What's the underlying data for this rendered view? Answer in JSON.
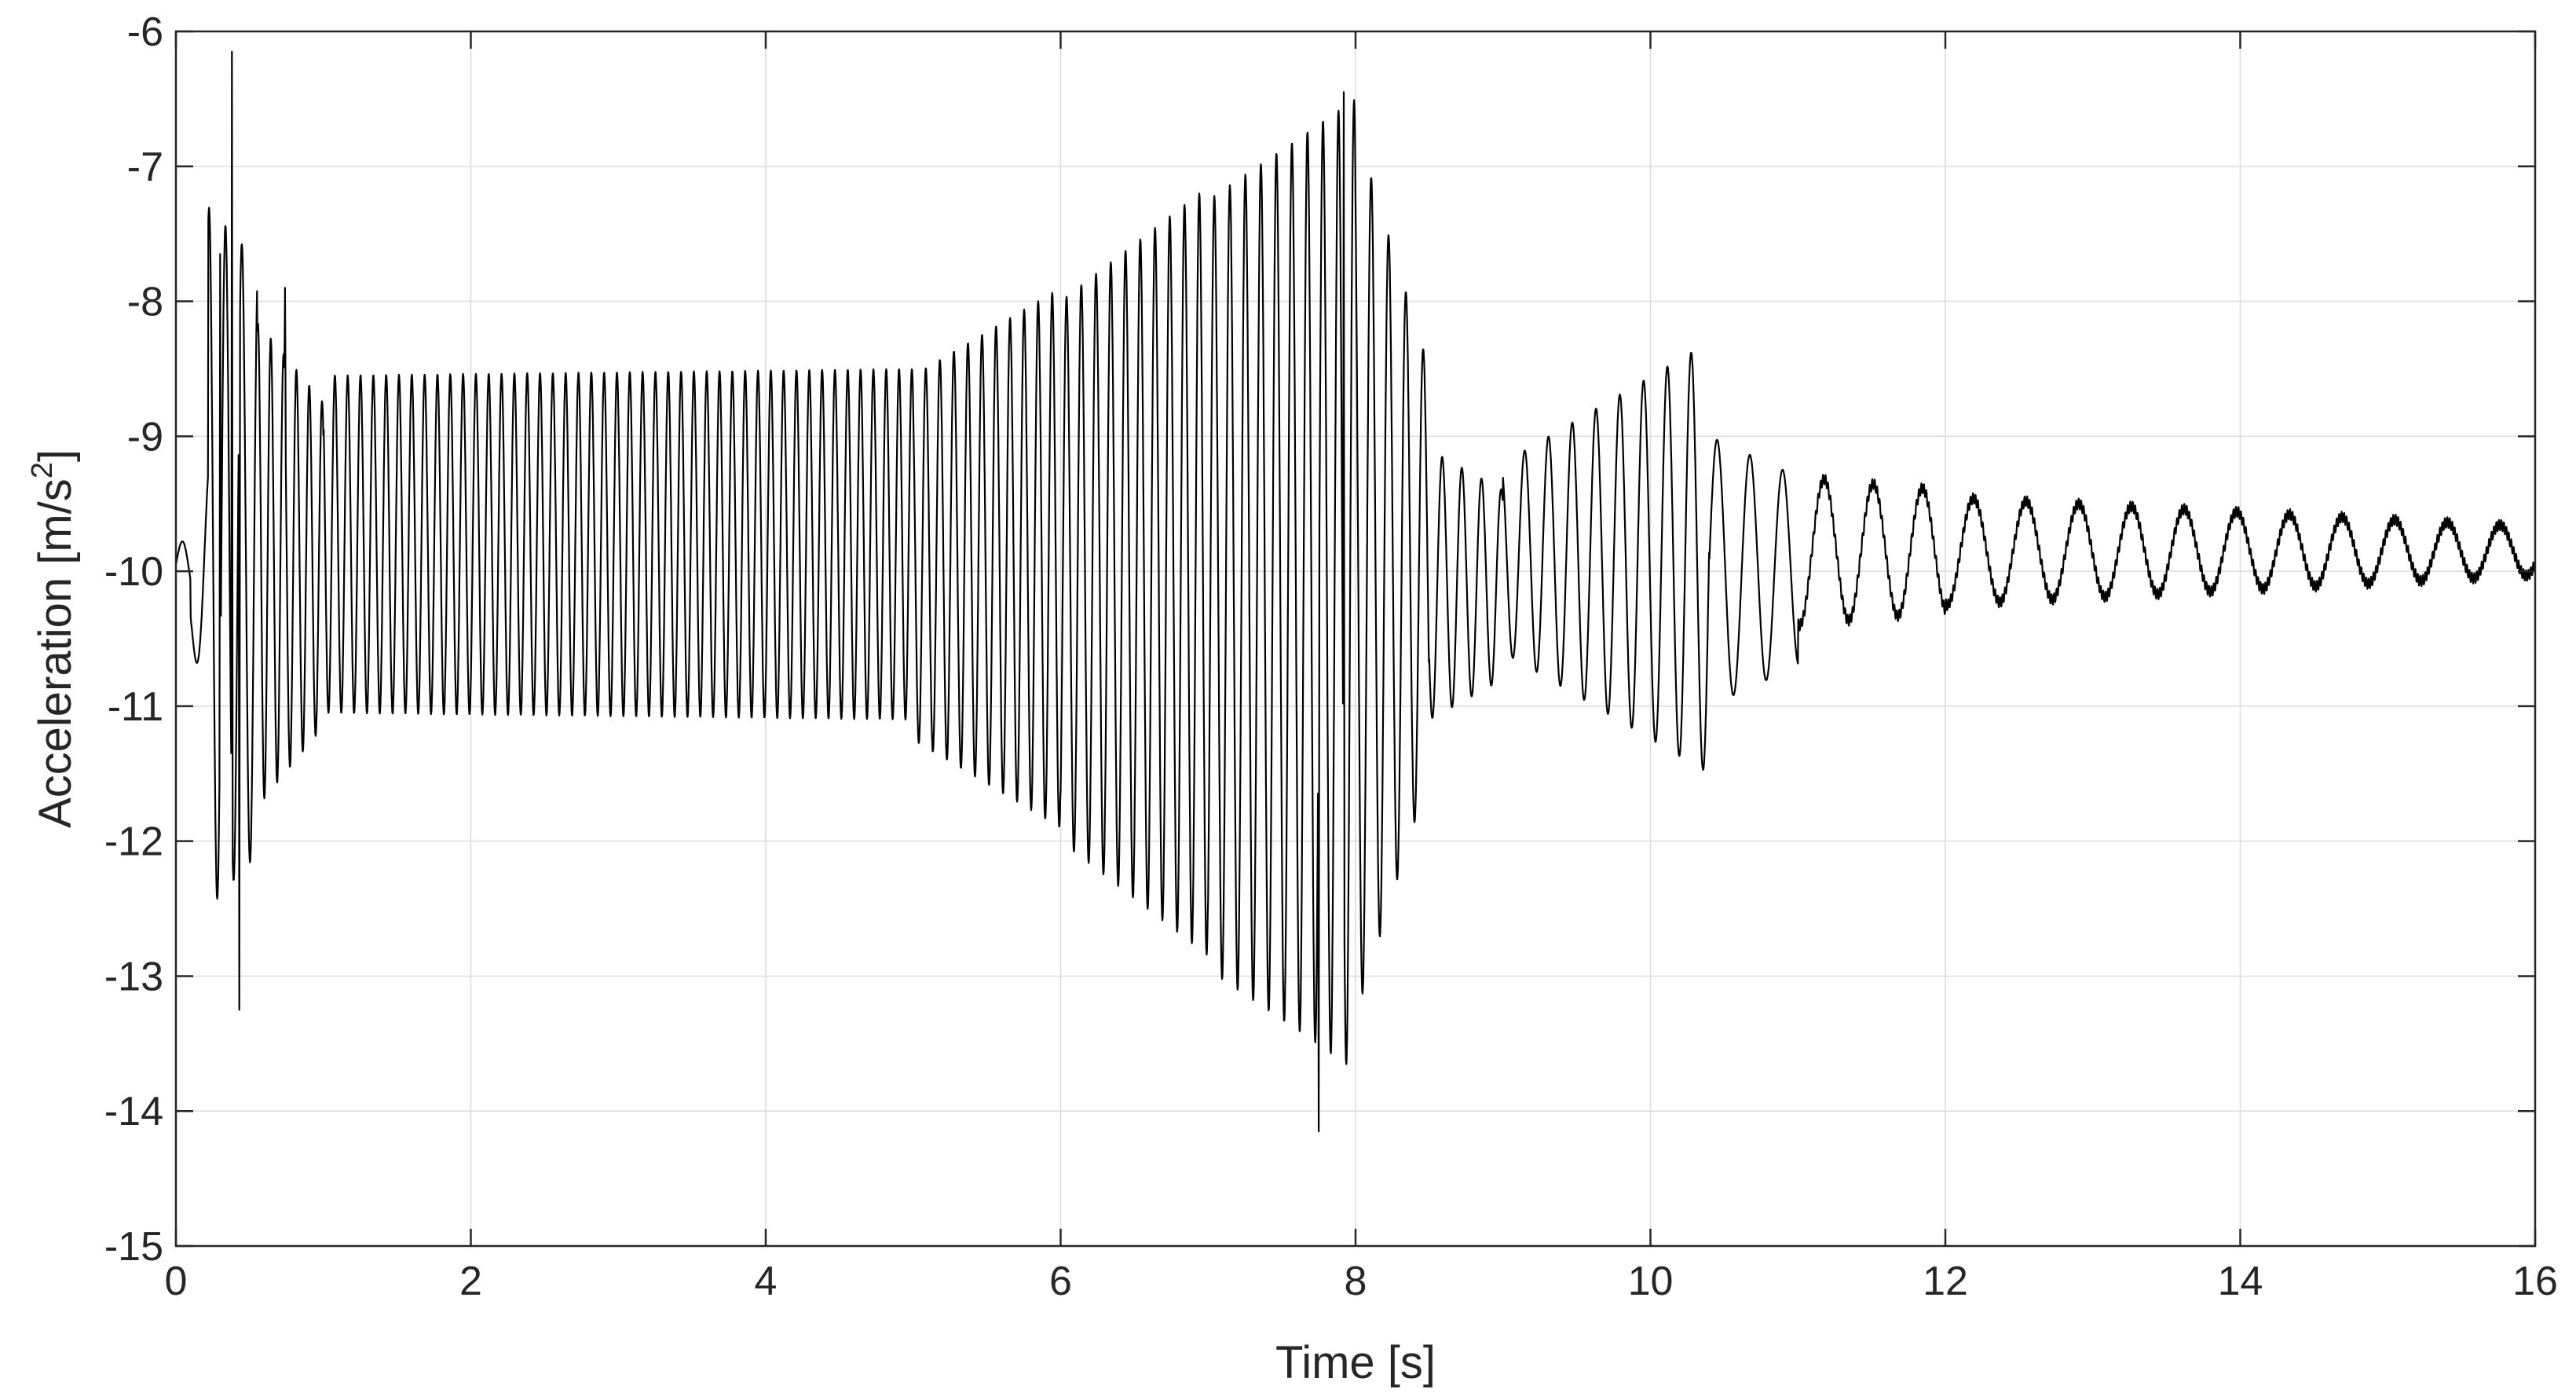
{
  "chart_data": {
    "type": "line",
    "title": "",
    "xlabel": "Time [s]",
    "ylabel_text": "Acceleration [m/s",
    "ylabel_sup": "2",
    "ylabel_close": "]",
    "xlim": [
      0,
      16
    ],
    "ylim": [
      -15,
      -6
    ],
    "x_ticks": [
      "0",
      "2",
      "4",
      "6",
      "8",
      "10",
      "12",
      "14",
      "16"
    ],
    "y_ticks": [
      "-6",
      "-7",
      "-8",
      "-9",
      "-10",
      "-11",
      "-12",
      "-13",
      "-14",
      "-15"
    ],
    "grid": true,
    "line_color": "#000000",
    "series": [
      {
        "name": "",
        "segments": [
          {
            "t0": 0.0,
            "t1": 0.1,
            "freq": 6.0,
            "mean": -9.95,
            "amp0": 0.15,
            "amp1": 0.2
          },
          {
            "t0": 0.1,
            "t1": 0.22,
            "freq": 5.0,
            "mean": -10.2,
            "amp0": 0.25,
            "amp1": 1.0
          },
          {
            "t0": 0.22,
            "t1": 0.55,
            "freq": 9.0,
            "mean": -9.9,
            "amp0": 2.6,
            "amp1": 2.2
          },
          {
            "t0": 0.55,
            "t1": 1.0,
            "freq": 11.5,
            "mean": -9.95,
            "amp0": 1.8,
            "amp1": 1.2
          },
          {
            "t0": 1.0,
            "t1": 5.0,
            "freq": 11.5,
            "mean": -9.8,
            "amp0": 1.25,
            "amp1": 1.3
          },
          {
            "t0": 5.0,
            "t1": 6.0,
            "freq": 10.5,
            "mean": -9.9,
            "amp0": 1.35,
            "amp1": 2.0
          },
          {
            "t0": 6.0,
            "t1": 7.0,
            "freq": 10.0,
            "mean": -10.0,
            "amp0": 2.0,
            "amp1": 2.85
          },
          {
            "t0": 7.0,
            "t1": 8.0,
            "freq": 9.5,
            "mean": -10.1,
            "amp0": 2.85,
            "amp1": 3.6
          },
          {
            "t0": 8.0,
            "t1": 8.5,
            "freq": 8.5,
            "mean": -10.0,
            "amp0": 3.3,
            "amp1": 1.5
          },
          {
            "t0": 8.5,
            "t1": 9.0,
            "freq": 7.5,
            "mean": -10.1,
            "amp0": 1.0,
            "amp1": 0.7
          },
          {
            "t0": 9.0,
            "t1": 10.4,
            "freq": 6.2,
            "mean": -9.9,
            "amp0": 0.7,
            "amp1": 1.6
          },
          {
            "t0": 10.4,
            "t1": 11.0,
            "freq": 4.5,
            "mean": -10.0,
            "amp0": 1.0,
            "amp1": 0.7
          },
          {
            "t0": 11.0,
            "t1": 12.0,
            "freq": 3.0,
            "mean": -9.85,
            "amp0": 0.55,
            "amp1": 0.45
          },
          {
            "t0": 12.0,
            "t1": 16.0,
            "freq": 2.8,
            "mean": -9.85,
            "amp0": 0.4,
            "amp1": 0.18
          }
        ],
        "peaks": [
          {
            "t": 0.38,
            "v": -6.15
          },
          {
            "t": 0.43,
            "v": -13.25
          },
          {
            "t": 0.3,
            "v": -7.65
          },
          {
            "t": 0.74,
            "v": -7.9
          },
          {
            "t": 7.75,
            "v": -14.15
          },
          {
            "t": 7.92,
            "v": -6.45
          }
        ]
      }
    ]
  }
}
